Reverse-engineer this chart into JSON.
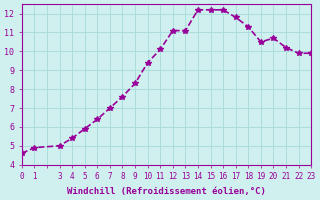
{
  "x": [
    0,
    1,
    3,
    4,
    5,
    6,
    7,
    8,
    9,
    10,
    11,
    12,
    13,
    14,
    15,
    16,
    17,
    18,
    19,
    20,
    21,
    22,
    23
  ],
  "y": [
    4.6,
    4.9,
    5.0,
    5.4,
    5.9,
    6.4,
    7.0,
    7.6,
    8.3,
    9.4,
    10.1,
    11.1,
    11.1,
    12.2,
    12.2,
    12.2,
    11.8,
    11.3,
    10.5,
    10.7,
    10.2,
    9.9,
    9.9
  ],
  "line_color": "#990099",
  "marker": "*",
  "marker_size": 4,
  "bg_color": "#d0f0f0",
  "grid_color": "#aadddd",
  "xlabel": "Windchill (Refroidissement éolien,°C)",
  "xlabel_color": "#990099",
  "tick_color": "#990099",
  "ylim": [
    4,
    12.5
  ],
  "xlim": [
    0,
    23
  ],
  "yticks": [
    4,
    5,
    6,
    7,
    8,
    9,
    10,
    11,
    12
  ],
  "xticks": [
    0,
    1,
    2,
    3,
    4,
    5,
    6,
    7,
    8,
    9,
    10,
    11,
    12,
    13,
    14,
    15,
    16,
    17,
    18,
    19,
    20,
    21,
    22,
    23
  ],
  "xtick_labels": [
    "0",
    "1",
    "",
    "3",
    "4",
    "5",
    "6",
    "7",
    "8",
    "9",
    "10",
    "11",
    "12",
    "13",
    "14",
    "15",
    "16",
    "17",
    "18",
    "19",
    "20",
    "21",
    "22",
    "23"
  ],
  "linewidth": 1.2
}
